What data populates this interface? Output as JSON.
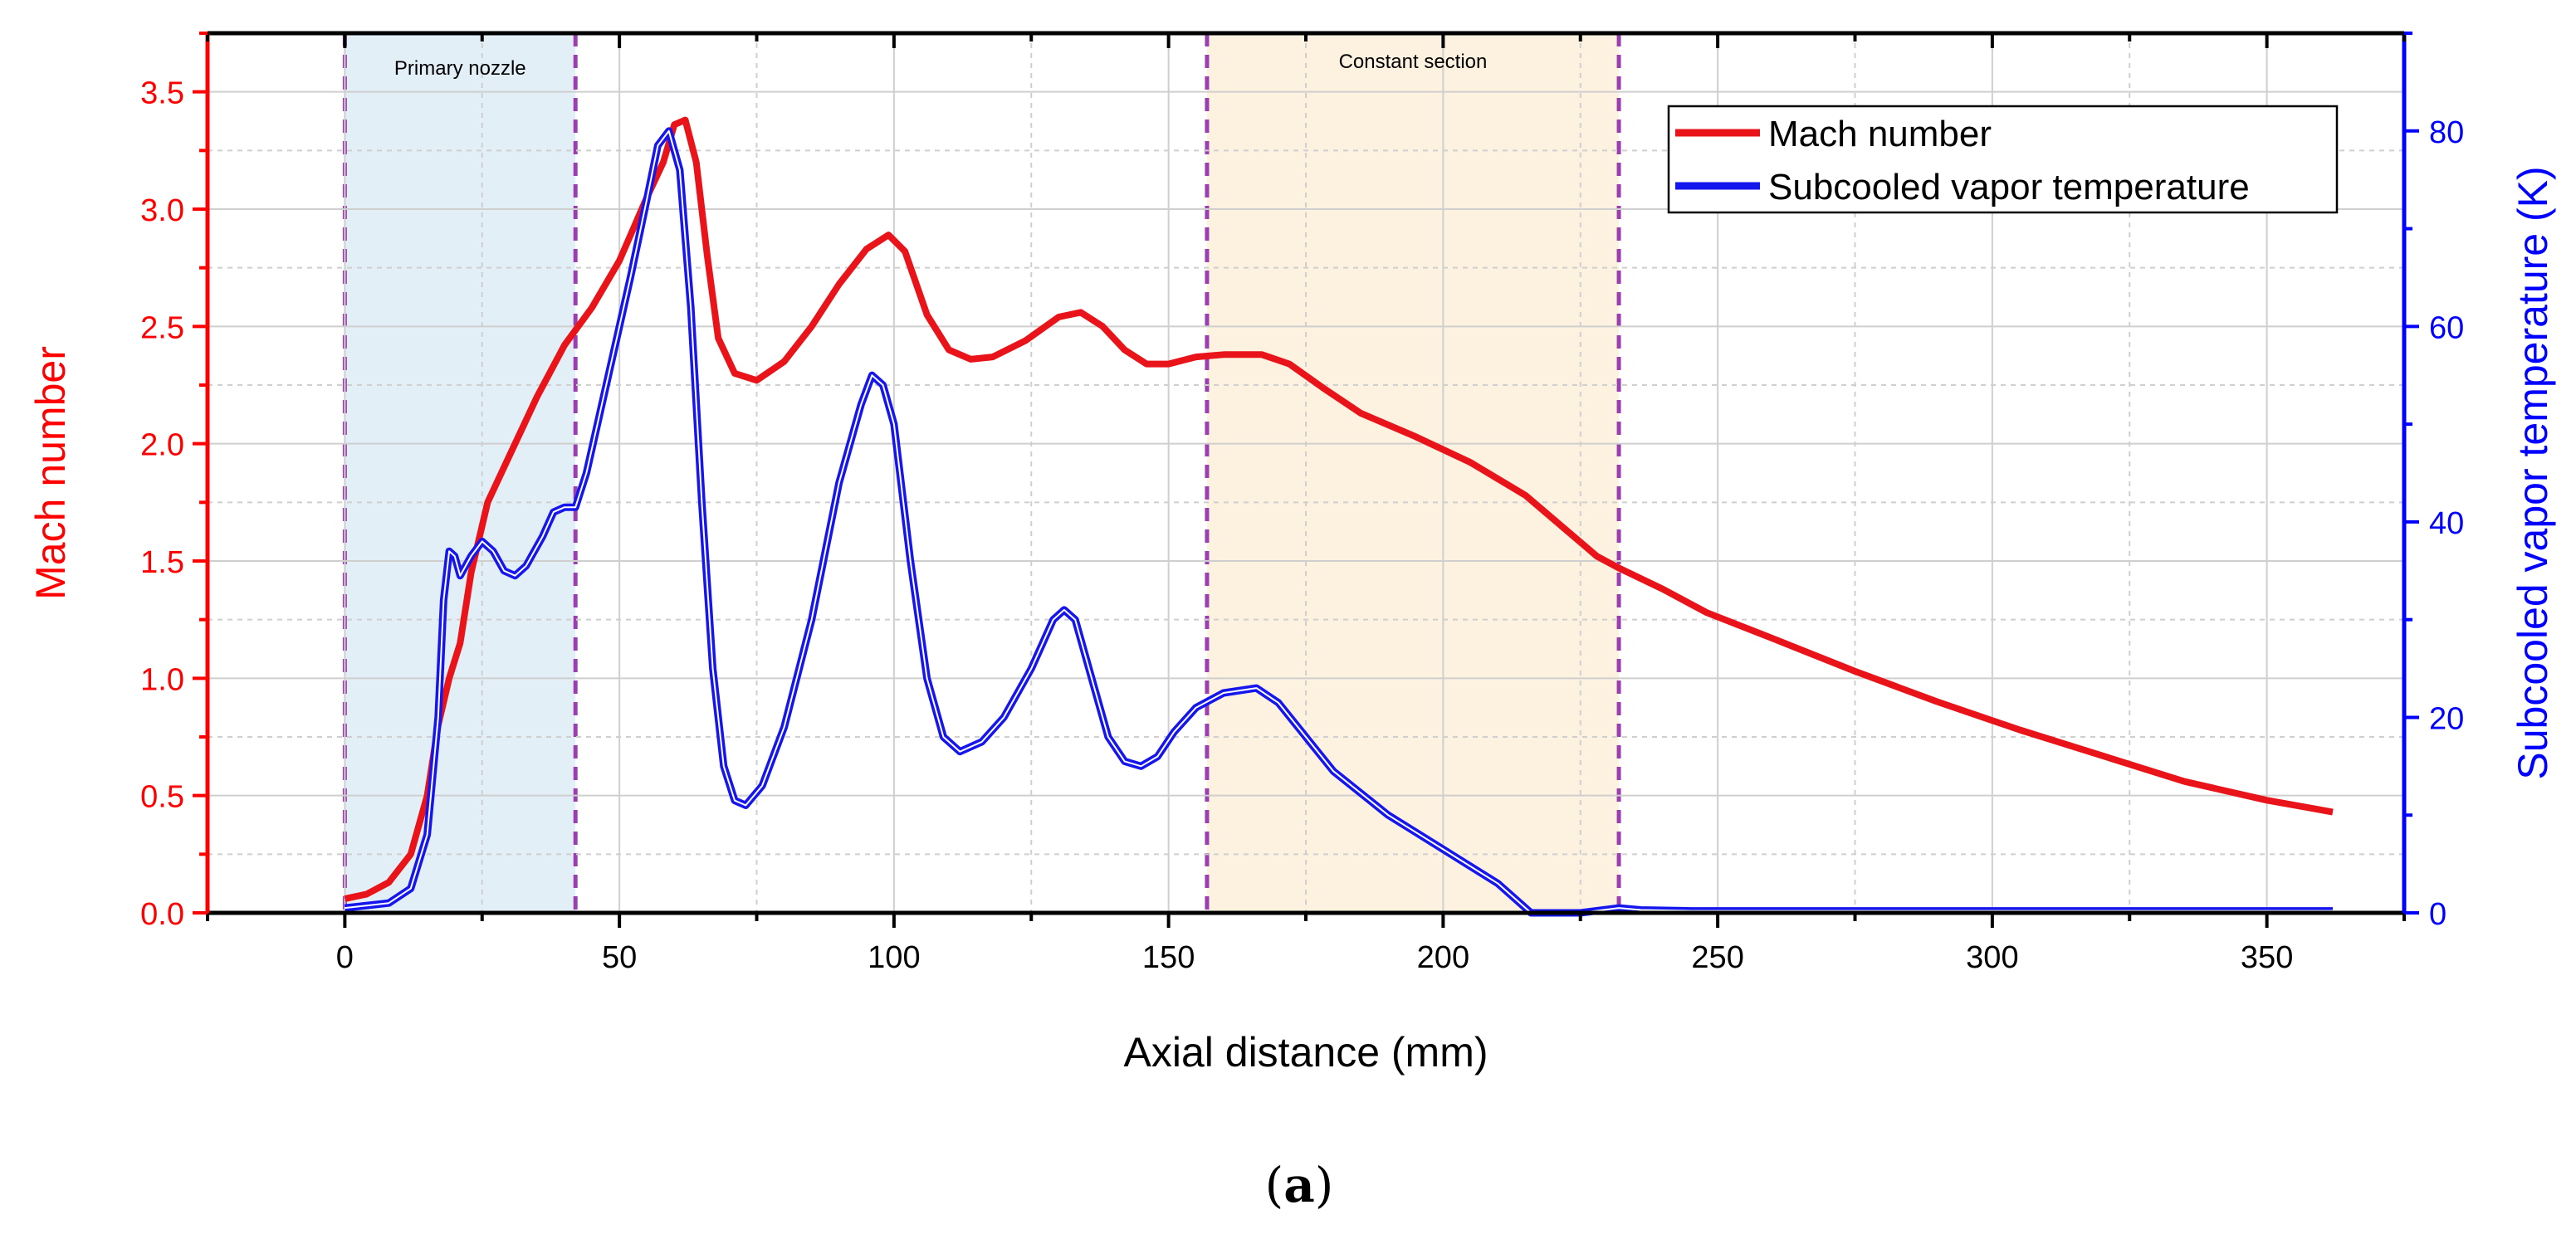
{
  "chart_data": {
    "type": "line",
    "title": "",
    "xlabel": "Axial distance (mm)",
    "ylabel_left": "Mach number",
    "ylabel_right": "Subcooled vapor temperature (K)",
    "subfigure_label": "(a)",
    "subfigure_letter": "a",
    "xlim": [
      -25,
      375
    ],
    "ylim_left": [
      0,
      3.75
    ],
    "ylim_right": [
      0,
      90
    ],
    "x_ticks": [
      0,
      50,
      100,
      150,
      200,
      250,
      300,
      350
    ],
    "y_left_ticks": [
      0.0,
      0.5,
      1.0,
      1.5,
      2.0,
      2.5,
      3.0,
      3.5
    ],
    "y_right_ticks": [
      0,
      20,
      40,
      60,
      80
    ],
    "x_tick_labels": [
      "0",
      "50",
      "100",
      "150",
      "200",
      "250",
      "300",
      "350"
    ],
    "y_left_tick_labels": [
      "0.0",
      "0.5",
      "1.0",
      "1.5",
      "2.0",
      "2.5",
      "3.0",
      "3.5"
    ],
    "y_right_tick_labels": [
      "0",
      "20",
      "40",
      "60",
      "80"
    ],
    "grid": true,
    "legend_position": "top-right",
    "regions": [
      {
        "name": "Primary nozzle",
        "x_start": 0,
        "x_end": 42,
        "color": "#e3eff7"
      },
      {
        "name": "Constant section",
        "x_start": 157,
        "x_end": 232,
        "color": "#fdf1df"
      }
    ],
    "region_boundary_color": "#9b3fb0",
    "series": [
      {
        "name": "Mach number",
        "axis": "left",
        "color": "#e8141a",
        "points": [
          [
            0,
            0.06
          ],
          [
            4,
            0.08
          ],
          [
            8,
            0.13
          ],
          [
            12,
            0.25
          ],
          [
            15,
            0.5
          ],
          [
            17,
            0.8
          ],
          [
            19,
            1.0
          ],
          [
            21,
            1.15
          ],
          [
            23,
            1.45
          ],
          [
            26,
            1.75
          ],
          [
            30,
            1.95
          ],
          [
            35,
            2.2
          ],
          [
            40,
            2.42
          ],
          [
            45,
            2.58
          ],
          [
            50,
            2.78
          ],
          [
            55,
            3.05
          ],
          [
            58,
            3.2
          ],
          [
            60,
            3.36
          ],
          [
            62,
            3.38
          ],
          [
            64,
            3.2
          ],
          [
            66,
            2.8
          ],
          [
            68,
            2.45
          ],
          [
            71,
            2.3
          ],
          [
            75,
            2.27
          ],
          [
            80,
            2.35
          ],
          [
            85,
            2.5
          ],
          [
            90,
            2.68
          ],
          [
            95,
            2.83
          ],
          [
            99,
            2.89
          ],
          [
            102,
            2.82
          ],
          [
            106,
            2.55
          ],
          [
            110,
            2.4
          ],
          [
            114,
            2.36
          ],
          [
            118,
            2.37
          ],
          [
            124,
            2.44
          ],
          [
            130,
            2.54
          ],
          [
            134,
            2.56
          ],
          [
            138,
            2.5
          ],
          [
            142,
            2.4
          ],
          [
            146,
            2.34
          ],
          [
            150,
            2.34
          ],
          [
            155,
            2.37
          ],
          [
            160,
            2.38
          ],
          [
            167,
            2.38
          ],
          [
            172,
            2.34
          ],
          [
            178,
            2.24
          ],
          [
            185,
            2.13
          ],
          [
            195,
            2.03
          ],
          [
            205,
            1.92
          ],
          [
            215,
            1.78
          ],
          [
            222,
            1.64
          ],
          [
            228,
            1.52
          ],
          [
            232,
            1.47
          ],
          [
            240,
            1.38
          ],
          [
            248,
            1.28
          ],
          [
            260,
            1.17
          ],
          [
            275,
            1.03
          ],
          [
            290,
            0.9
          ],
          [
            305,
            0.78
          ],
          [
            320,
            0.67
          ],
          [
            335,
            0.56
          ],
          [
            350,
            0.48
          ],
          [
            362,
            0.43
          ]
        ]
      },
      {
        "name": "Subcooled vapor temperature",
        "axis": "right",
        "color": "#1515ee",
        "points": [
          [
            0,
            0.5
          ],
          [
            8,
            1
          ],
          [
            12,
            2.5
          ],
          [
            15,
            8
          ],
          [
            17,
            20
          ],
          [
            18,
            32
          ],
          [
            19,
            37
          ],
          [
            20,
            36.5
          ],
          [
            21,
            34.5
          ],
          [
            23,
            36.5
          ],
          [
            25,
            38
          ],
          [
            27,
            37
          ],
          [
            29,
            35
          ],
          [
            31,
            34.5
          ],
          [
            33,
            35.5
          ],
          [
            36,
            38.5
          ],
          [
            38,
            41
          ],
          [
            40,
            41.5
          ],
          [
            42,
            41.5
          ],
          [
            44,
            45
          ],
          [
            48,
            55
          ],
          [
            52,
            65
          ],
          [
            55,
            73
          ],
          [
            57,
            78.5
          ],
          [
            59,
            80
          ],
          [
            61,
            76
          ],
          [
            63,
            62
          ],
          [
            65,
            42
          ],
          [
            67,
            25
          ],
          [
            69,
            15
          ],
          [
            71,
            11.5
          ],
          [
            73,
            11
          ],
          [
            76,
            13
          ],
          [
            80,
            19
          ],
          [
            85,
            30
          ],
          [
            90,
            44
          ],
          [
            94,
            52
          ],
          [
            96,
            55
          ],
          [
            98,
            54
          ],
          [
            100,
            50
          ],
          [
            103,
            36
          ],
          [
            106,
            24
          ],
          [
            109,
            18
          ],
          [
            112,
            16.5
          ],
          [
            116,
            17.5
          ],
          [
            120,
            20
          ],
          [
            125,
            25
          ],
          [
            129,
            30
          ],
          [
            131,
            31
          ],
          [
            133,
            30
          ],
          [
            136,
            24
          ],
          [
            139,
            18
          ],
          [
            142,
            15.5
          ],
          [
            145,
            15
          ],
          [
            148,
            16
          ],
          [
            151,
            18.5
          ],
          [
            155,
            21
          ],
          [
            160,
            22.5
          ],
          [
            166,
            23
          ],
          [
            170,
            21.5
          ],
          [
            175,
            18
          ],
          [
            180,
            14.5
          ],
          [
            190,
            10
          ],
          [
            200,
            6.5
          ],
          [
            210,
            3
          ],
          [
            214,
            1
          ],
          [
            216,
            0
          ],
          [
            225,
            0
          ],
          [
            232,
            0.5
          ],
          [
            236,
            0.3
          ],
          [
            245,
            0.2
          ],
          [
            300,
            0.2
          ],
          [
            362,
            0.2
          ]
        ]
      }
    ]
  },
  "colors": {
    "left_axis": "#ff0000",
    "right_axis": "#0000ff",
    "grid": "#cfcfcf"
  }
}
